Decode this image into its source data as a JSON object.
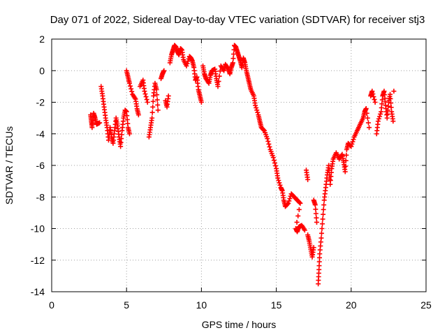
{
  "chart_data": {
    "type": "scatter",
    "title": "Day 071 of 2022, Sidereal Day-to-day VTEC variation (SDTVAR) for receiver stj3",
    "xlabel": "GPS time / hours",
    "ylabel": "SDTVAR / TECUs",
    "xlim": [
      0,
      25
    ],
    "ylim": [
      -14,
      2
    ],
    "xticks": [
      0,
      5,
      10,
      15,
      20,
      25
    ],
    "yticks": [
      -14,
      -12,
      -10,
      -8,
      -6,
      -4,
      -2,
      0,
      2
    ],
    "xtick_labels": [
      "0",
      "5",
      "10",
      "15",
      "20",
      "25"
    ],
    "ytick_labels": [
      "-14",
      "-12",
      "-10",
      "-8",
      "-6",
      "-4",
      "-2",
      "0",
      "2"
    ],
    "grid": true,
    "marker": "+",
    "color": "#ff0000",
    "series": [
      {
        "points": [
          [
            2.6,
            -2.8
          ],
          [
            2.65,
            -3.2
          ],
          [
            2.7,
            -3.6
          ],
          [
            2.8,
            -2.7
          ],
          [
            2.9,
            -3.0
          ],
          [
            3.0,
            -3.4
          ],
          [
            3.2,
            -3.3
          ],
          [
            3.3,
            -1.0
          ],
          [
            3.4,
            -1.6
          ],
          [
            3.5,
            -2.3
          ],
          [
            3.6,
            -3.0
          ],
          [
            3.7,
            -3.6
          ],
          [
            3.8,
            -4.4
          ],
          [
            3.9,
            -3.6
          ],
          [
            4.0,
            -4.2
          ],
          [
            4.1,
            -4.6
          ],
          [
            4.2,
            -3.8
          ],
          [
            4.3,
            -3.0
          ],
          [
            4.4,
            -3.5
          ],
          [
            4.5,
            -4.2
          ],
          [
            4.6,
            -4.8
          ],
          [
            4.7,
            -3.8
          ],
          [
            4.8,
            -3.0
          ],
          [
            4.9,
            -2.5
          ],
          [
            5.0,
            -2.6
          ],
          [
            5.1,
            -3.6
          ],
          [
            5.2,
            -4.0
          ],
          [
            5.0,
            0.0
          ],
          [
            5.1,
            -0.4
          ],
          [
            5.2,
            -0.8
          ],
          [
            5.4,
            -1.5
          ],
          [
            5.6,
            -1.8
          ],
          [
            5.7,
            -2.4
          ],
          [
            5.8,
            -2.8
          ],
          [
            5.9,
            -1.0
          ],
          [
            6.1,
            -0.6
          ],
          [
            6.2,
            -1.3
          ],
          [
            6.4,
            -2.0
          ],
          [
            6.5,
            -4.2
          ],
          [
            6.6,
            -3.6
          ],
          [
            6.7,
            -3.0
          ],
          [
            6.8,
            -1.6
          ],
          [
            6.9,
            -0.8
          ],
          [
            7.0,
            -1.2
          ],
          [
            7.1,
            -2.5
          ],
          [
            7.3,
            -0.5
          ],
          [
            7.4,
            -0.2
          ],
          [
            7.5,
            0.0
          ],
          [
            7.6,
            -1.9
          ],
          [
            7.7,
            -2.3
          ],
          [
            7.8,
            -1.6
          ],
          [
            7.9,
            0.5
          ],
          [
            8.0,
            1.0
          ],
          [
            8.1,
            1.3
          ],
          [
            8.2,
            1.6
          ],
          [
            8.3,
            1.5
          ],
          [
            8.4,
            1.2
          ],
          [
            8.5,
            1.0
          ],
          [
            8.6,
            1.4
          ],
          [
            8.7,
            1.3
          ],
          [
            8.8,
            0.7
          ],
          [
            9.0,
            0.3
          ],
          [
            9.2,
            0.9
          ],
          [
            9.3,
            0.8
          ],
          [
            9.4,
            0.6
          ],
          [
            9.5,
            0.2
          ],
          [
            9.6,
            -0.6
          ],
          [
            9.7,
            -0.4
          ],
          [
            9.8,
            -1.2
          ],
          [
            9.9,
            -1.6
          ],
          [
            10.0,
            -2.0
          ],
          [
            10.1,
            0.3
          ],
          [
            10.2,
            -0.2
          ],
          [
            10.3,
            -0.5
          ],
          [
            10.5,
            -0.8
          ],
          [
            10.6,
            -0.3
          ],
          [
            10.7,
            0.0
          ],
          [
            10.9,
            0.1
          ],
          [
            11.0,
            -0.5
          ],
          [
            11.1,
            -1.0
          ],
          [
            11.3,
            0.3
          ],
          [
            11.5,
            0.0
          ],
          [
            11.6,
            0.4
          ],
          [
            11.8,
            0.1
          ],
          [
            11.9,
            -0.2
          ],
          [
            12.0,
            0.2
          ],
          [
            12.1,
            0.5
          ],
          [
            12.2,
            1.6
          ],
          [
            12.3,
            1.5
          ],
          [
            12.4,
            1.2
          ],
          [
            12.5,
            0.9
          ],
          [
            12.6,
            0.6
          ],
          [
            12.7,
            0.2
          ],
          [
            12.8,
            0.8
          ],
          [
            12.9,
            0.5
          ],
          [
            13.0,
            0.0
          ],
          [
            13.1,
            -0.4
          ],
          [
            13.2,
            -0.8
          ],
          [
            13.3,
            -1.2
          ],
          [
            13.5,
            -1.6
          ],
          [
            13.6,
            -2.2
          ],
          [
            13.8,
            -2.8
          ],
          [
            13.9,
            -3.2
          ],
          [
            14.0,
            -3.6
          ],
          [
            14.2,
            -3.8
          ],
          [
            14.4,
            -4.3
          ],
          [
            14.6,
            -5.0
          ],
          [
            14.8,
            -5.5
          ],
          [
            15.0,
            -6.2
          ],
          [
            15.1,
            -6.8
          ],
          [
            15.3,
            -7.4
          ],
          [
            15.4,
            -7.6
          ],
          [
            15.5,
            -8.2
          ],
          [
            15.6,
            -8.6
          ],
          [
            15.8,
            -8.4
          ],
          [
            16.0,
            -7.8
          ],
          [
            16.2,
            -8.0
          ],
          [
            16.4,
            -8.2
          ],
          [
            16.6,
            -8.4
          ],
          [
            16.3,
            -10.0
          ],
          [
            16.4,
            -10.2
          ],
          [
            16.5,
            -9.9
          ],
          [
            16.7,
            -9.8
          ],
          [
            16.9,
            -10.1
          ],
          [
            17.0,
            -6.3
          ],
          [
            17.1,
            -6.9
          ],
          [
            17.1,
            -10.4
          ],
          [
            17.2,
            -10.8
          ],
          [
            17.3,
            -11.3
          ],
          [
            17.4,
            -11.8
          ],
          [
            17.5,
            -11.2
          ],
          [
            17.5,
            -8.2
          ],
          [
            17.6,
            -8.5
          ],
          [
            17.7,
            -9.6
          ],
          [
            17.8,
            -13.5
          ],
          [
            17.85,
            -12.6
          ],
          [
            17.9,
            -11.6
          ],
          [
            18.0,
            -10.6
          ],
          [
            18.1,
            -9.4
          ],
          [
            18.2,
            -8.2
          ],
          [
            18.3,
            -7.4
          ],
          [
            18.4,
            -6.6
          ],
          [
            18.5,
            -6.0
          ],
          [
            18.6,
            -7.2
          ],
          [
            18.7,
            -6.2
          ],
          [
            18.8,
            -5.6
          ],
          [
            19.0,
            -5.2
          ],
          [
            19.2,
            -5.6
          ],
          [
            19.4,
            -5.3
          ],
          [
            19.5,
            -5.8
          ],
          [
            19.6,
            -6.4
          ],
          [
            19.7,
            -5.0
          ],
          [
            19.8,
            -4.6
          ],
          [
            20.0,
            -4.8
          ],
          [
            20.2,
            -4.2
          ],
          [
            20.4,
            -3.8
          ],
          [
            20.6,
            -3.4
          ],
          [
            20.8,
            -3.0
          ],
          [
            20.9,
            -2.6
          ],
          [
            21.0,
            -2.4
          ],
          [
            21.2,
            -3.6
          ],
          [
            21.3,
            -1.6
          ],
          [
            21.4,
            -1.3
          ],
          [
            21.6,
            -2.0
          ],
          [
            21.7,
            -4.0
          ],
          [
            21.8,
            -3.2
          ],
          [
            22.0,
            -2.6
          ],
          [
            22.1,
            -1.6
          ],
          [
            22.2,
            -1.3
          ],
          [
            22.3,
            -2.2
          ],
          [
            22.4,
            -3.0
          ],
          [
            22.5,
            -2.0
          ],
          [
            22.6,
            -1.5
          ],
          [
            22.7,
            -2.6
          ],
          [
            22.8,
            -3.2
          ],
          [
            22.85,
            -1.3
          ]
        ]
      }
    ]
  }
}
